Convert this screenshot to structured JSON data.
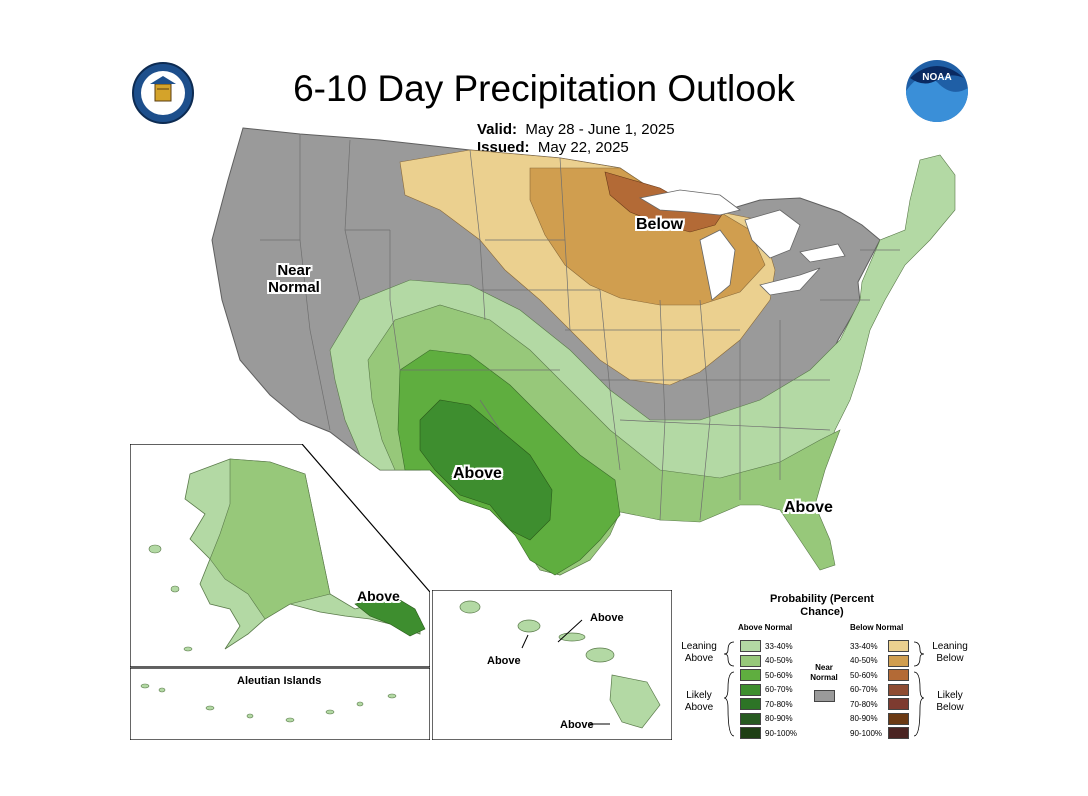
{
  "title": "6-10 Day Precipitation Outlook",
  "valid": {
    "label": "Valid:",
    "value": "May 28 - June 1, 2025"
  },
  "issued": {
    "label": "Issued:",
    "value": "May 22, 2025"
  },
  "map_labels": {
    "near_normal": "Near Normal",
    "below": "Below",
    "above_texas": "Above",
    "above_florida": "Above",
    "above_alaska": "Above"
  },
  "inset_labels": {
    "aleutian": "Aleutian Islands",
    "hawaii_above_1": "Above",
    "hawaii_above_2": "Above",
    "hawaii_above_3": "Above"
  },
  "legend": {
    "title": "Probability (Percent Chance)",
    "above_head": "Above Normal",
    "below_head": "Below Normal",
    "near_normal": "Near Normal",
    "leaning_above": "Leaning Above",
    "likely_above": "Likely Above",
    "leaning_below": "Leaning Below",
    "likely_below": "Likely Below",
    "above": [
      {
        "label": "33-40%",
        "color": "#b3d9a4"
      },
      {
        "label": "40-50%",
        "color": "#97c87a"
      },
      {
        "label": "50-60%",
        "color": "#5fae3f"
      },
      {
        "label": "60-70%",
        "color": "#3e8e2f"
      },
      {
        "label": "70-80%",
        "color": "#2d7426"
      },
      {
        "label": "80-90%",
        "color": "#275a21"
      },
      {
        "label": "90-100%",
        "color": "#1e3f14"
      }
    ],
    "below": [
      {
        "label": "33-40%",
        "color": "#ebd08f"
      },
      {
        "label": "40-50%",
        "color": "#d09e4f"
      },
      {
        "label": "50-60%",
        "color": "#b36a36"
      },
      {
        "label": "60-70%",
        "color": "#8e4c32"
      },
      {
        "label": "70-80%",
        "color": "#7d3b30"
      },
      {
        "label": "80-90%",
        "color": "#6b3a14"
      },
      {
        "label": "90-100%",
        "color": "#4a2422"
      }
    ],
    "near_normal_color": "#9a9a9a"
  },
  "colors": {
    "near_normal": "#9a9a9a",
    "below_1": "#ebd08f",
    "below_2": "#d09e4f",
    "below_3": "#b36a36",
    "above_1": "#b3d9a4",
    "above_2": "#97c87a",
    "above_3": "#5fae3f",
    "above_4": "#3e8e2f",
    "water": "#ffffff",
    "noaa_blue": "#1f5fa6"
  },
  "logos": {
    "left": "commerce-seal-icon",
    "right_text": "NOAA"
  }
}
